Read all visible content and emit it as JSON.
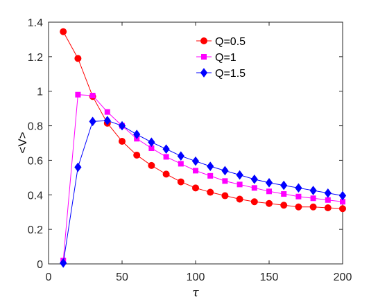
{
  "chart_data": {
    "type": "line",
    "title": "",
    "xlabel": "τ",
    "ylabel": "<V>",
    "xlim": [
      0,
      200
    ],
    "ylim": [
      0,
      1.4
    ],
    "xticks": [
      0,
      50,
      100,
      150,
      200
    ],
    "yticks": [
      0,
      0.2,
      0.4,
      0.6,
      0.8,
      1,
      1.2,
      1.4
    ],
    "xtick_labels": [
      "0",
      "50",
      "100",
      "150",
      "200"
    ],
    "ytick_labels": [
      "0",
      "0.2",
      "0.4",
      "0.6",
      "0.8",
      "1",
      "1.2",
      "1.4"
    ],
    "grid": false,
    "legend_position": "top-right",
    "x": [
      10,
      20,
      30,
      40,
      50,
      60,
      70,
      80,
      90,
      100,
      110,
      120,
      130,
      140,
      150,
      160,
      170,
      180,
      190,
      200
    ],
    "series": [
      {
        "name": "Q=0.5",
        "color": "#ff0000",
        "marker": "circle",
        "values": [
          1.345,
          1.19,
          0.97,
          0.815,
          0.71,
          0.63,
          0.57,
          0.52,
          0.475,
          0.44,
          0.415,
          0.395,
          0.375,
          0.36,
          0.35,
          0.34,
          0.33,
          0.33,
          0.325,
          0.32
        ]
      },
      {
        "name": "Q=1",
        "color": "#ff00ff",
        "marker": "square",
        "values": [
          0.02,
          0.98,
          0.975,
          0.88,
          0.8,
          0.725,
          0.67,
          0.62,
          0.58,
          0.54,
          0.51,
          0.48,
          0.46,
          0.44,
          0.42,
          0.405,
          0.39,
          0.38,
          0.37,
          0.36
        ]
      },
      {
        "name": "Q=1.5",
        "color": "#0000ff",
        "marker": "diamond",
        "values": [
          0.005,
          0.56,
          0.825,
          0.83,
          0.8,
          0.75,
          0.705,
          0.665,
          0.625,
          0.595,
          0.565,
          0.54,
          0.515,
          0.49,
          0.47,
          0.455,
          0.44,
          0.425,
          0.41,
          0.395
        ]
      }
    ]
  }
}
